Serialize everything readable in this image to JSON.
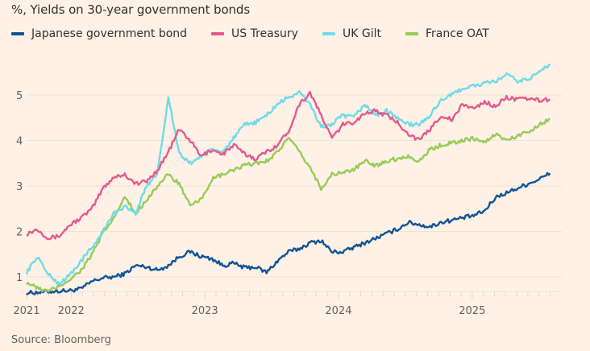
{
  "title": "%, Yields on 30-year government bonds",
  "source": "Source: Bloomberg",
  "chart_data": {
    "type": "line",
    "title": "%, Yields on 30-year government bonds",
    "xlabel": "",
    "ylabel": "%",
    "ylim": [
      0.6,
      5.8
    ],
    "yticks": [
      1,
      2,
      3,
      4,
      5
    ],
    "xlim": [
      "2021-09",
      "2025-08"
    ],
    "xticks": [
      {
        "label": "2021",
        "date": "2021-09"
      },
      {
        "label": "2022",
        "date": "2022-01"
      },
      {
        "label": "2023",
        "date": "2023-01"
      },
      {
        "label": "2024",
        "date": "2024-01"
      },
      {
        "label": "2025",
        "date": "2025-01"
      }
    ],
    "grid": "horizontal",
    "legend_position": "top-left",
    "x_step_months": 1,
    "x_start": "2021-09",
    "series": [
      {
        "name": "Japanese government bond",
        "color": "#0f5499",
        "values": [
          0.65,
          0.66,
          0.68,
          0.69,
          0.7,
          0.74,
          0.9,
          0.98,
          1.0,
          1.07,
          1.25,
          1.22,
          1.15,
          1.25,
          1.45,
          1.55,
          1.45,
          1.4,
          1.25,
          1.3,
          1.2,
          1.22,
          1.1,
          1.35,
          1.55,
          1.62,
          1.75,
          1.8,
          1.55,
          1.55,
          1.65,
          1.75,
          1.85,
          1.95,
          2.05,
          2.2,
          2.15,
          2.1,
          2.2,
          2.25,
          2.3,
          2.35,
          2.45,
          2.75,
          2.85,
          2.95,
          3.05,
          3.15,
          3.28
        ]
      },
      {
        "name": "US Treasury",
        "color": "#e5598e",
        "values": [
          1.95,
          2.05,
          1.85,
          1.9,
          2.15,
          2.3,
          2.5,
          2.95,
          3.2,
          3.25,
          3.05,
          3.1,
          3.35,
          3.75,
          4.25,
          4.0,
          3.65,
          3.8,
          3.7,
          3.9,
          3.7,
          3.6,
          3.75,
          3.9,
          4.2,
          4.8,
          5.05,
          4.55,
          4.05,
          4.35,
          4.4,
          4.6,
          4.65,
          4.55,
          4.4,
          4.15,
          4.0,
          4.25,
          4.55,
          4.45,
          4.8,
          4.7,
          4.85,
          4.75,
          4.95,
          4.9,
          4.92,
          4.88,
          4.9
        ]
      },
      {
        "name": "UK Gilt",
        "color": "#6fdbe8",
        "values": [
          1.1,
          1.45,
          1.05,
          0.85,
          1.05,
          1.35,
          1.65,
          2.0,
          2.4,
          2.55,
          2.4,
          3.0,
          3.3,
          4.95,
          3.7,
          3.5,
          3.65,
          3.8,
          3.75,
          4.05,
          4.35,
          4.4,
          4.55,
          4.8,
          4.95,
          5.05,
          4.8,
          4.3,
          4.35,
          4.55,
          4.5,
          4.8,
          4.55,
          4.65,
          4.5,
          4.35,
          4.35,
          4.55,
          4.9,
          5.0,
          5.15,
          5.2,
          5.25,
          5.3,
          5.45,
          5.3,
          5.35,
          5.5,
          5.68
        ]
      },
      {
        "name": "France OAT",
        "color": "#96cc57",
        "values": [
          0.88,
          0.75,
          0.68,
          0.8,
          0.95,
          1.15,
          1.5,
          1.95,
          2.3,
          2.75,
          2.4,
          2.7,
          3.0,
          3.25,
          3.05,
          2.55,
          2.7,
          3.15,
          3.25,
          3.35,
          3.45,
          3.5,
          3.55,
          3.75,
          4.05,
          3.75,
          3.4,
          2.95,
          3.25,
          3.3,
          3.35,
          3.55,
          3.45,
          3.55,
          3.6,
          3.65,
          3.55,
          3.8,
          3.9,
          3.95,
          4.0,
          4.05,
          3.95,
          4.15,
          4.0,
          4.1,
          4.2,
          4.35,
          4.47
        ]
      }
    ]
  }
}
